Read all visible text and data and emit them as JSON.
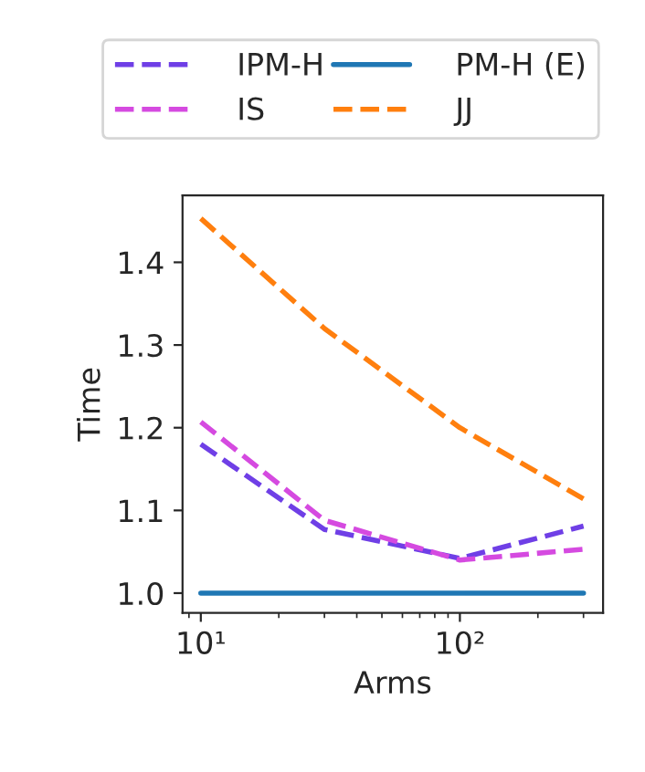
{
  "chart_data": {
    "type": "line",
    "xlabel": "Arms",
    "ylabel": "Time",
    "log": "x",
    "x": [
      10,
      30,
      100,
      300
    ],
    "series": [
      {
        "name": "IPM-H",
        "color": "#6f3fe6",
        "values": [
          1.18,
          1.077,
          1.042,
          1.081
        ],
        "line_style": "dashed"
      },
      {
        "name": "IS",
        "color": "#d54ae0",
        "values": [
          1.207,
          1.088,
          1.04,
          1.053
        ],
        "line_style": "dashed"
      },
      {
        "name": "PM-H (E)",
        "color": "#1f77b4",
        "values": [
          1.0,
          1.0,
          1.0,
          1.0
        ],
        "line_style": "solid"
      },
      {
        "name": "JJ",
        "color": "#ff7f0e",
        "values": [
          1.453,
          1.32,
          1.2,
          1.114
        ],
        "line_style": "dashed"
      }
    ],
    "xlim": [
      8.5,
      357
    ],
    "xticks": [
      {
        "value": 10,
        "label": "10¹"
      },
      {
        "value": 100,
        "label": "10²"
      }
    ],
    "ylim": [
      0.976,
      1.481
    ],
    "yticks": [
      {
        "value": 1.0,
        "label": "1.0"
      },
      {
        "value": 1.1,
        "label": "1.1"
      },
      {
        "value": 1.2,
        "label": "1.2"
      },
      {
        "value": 1.3,
        "label": "1.3"
      },
      {
        "value": 1.4,
        "label": "1.4"
      }
    ],
    "grid": false,
    "legend": "top",
    "marker": "none"
  }
}
